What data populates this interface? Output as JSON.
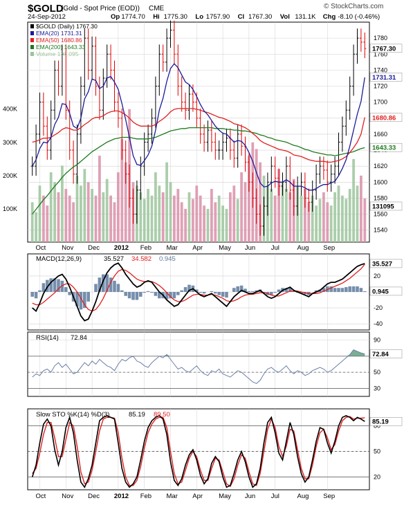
{
  "header": {
    "symbol": "$GOLD",
    "name": "(Gold - Spot Price (EOD))",
    "exchange": "CME",
    "watermark": "© StockCharts.com",
    "date": "24-Sep-2012",
    "ohlc": [
      {
        "label": "Op",
        "value": "1774.70"
      },
      {
        "label": "Hi",
        "value": "1775.30"
      },
      {
        "label": "Lo",
        "value": "1757.90"
      },
      {
        "label": "Cl",
        "value": "1767.30"
      },
      {
        "label": "Vol",
        "value": "131.1K"
      },
      {
        "label": "Chg",
        "value": "-8.10 (-0.46%)"
      }
    ]
  },
  "colors": {
    "background": "#ffffff",
    "panel_background": "#ffffff",
    "grid": "#d0d0d0",
    "up": "#000000",
    "down": "#e00000",
    "ema20": "#1a1a99",
    "ema50": "#e02020",
    "ema200": "#1d7a1d",
    "volume_up": "#9cc49c",
    "volume_down": "#d98fa8",
    "macd": "#000000",
    "signal": "#e02020",
    "histogram": "#5e7a9e",
    "rsi": "#6a7fa8",
    "rsi_fill": "#5a9a7a",
    "k": "#000000",
    "d": "#e02020"
  },
  "x_labels": [
    "Oct",
    "Nov",
    "Dec",
    "2012",
    "Feb",
    "Mar",
    "Apr",
    "May",
    "Jun",
    "Jul",
    "Aug",
    "Sep"
  ],
  "chart_data": [
    {
      "type": "candlestick",
      "title": "$GOLD (Daily) 1767.30",
      "legend": [
        {
          "name": "$GOLD (Daily) 1767.30",
          "color_key": "up"
        },
        {
          "name": "EMA(20) 1731.31",
          "color_key": "ema20"
        },
        {
          "name": "EMA(50) 1680.86",
          "color_key": "ema50"
        },
        {
          "name": "EMA(200) 1643.33",
          "color_key": "ema200"
        },
        {
          "name": "Volume 131,095",
          "color_key": "volume_up"
        }
      ],
      "ylim": [
        1525,
        1800
      ],
      "y_ticks": [
        1540,
        1560,
        1580,
        1600,
        1620,
        1640,
        1660,
        1680,
        1700,
        1720,
        1740,
        1760,
        1780
      ],
      "volume_ticks": [
        {
          "label": "100K",
          "value": 100000
        },
        {
          "label": "200K",
          "value": 200000
        },
        {
          "label": "300K",
          "value": 300000
        },
        {
          "label": "400K",
          "value": 400000
        }
      ],
      "volume_ylim": [
        0,
        620000
      ],
      "price_tags": [
        {
          "label": "1767.30",
          "value": 1767.3,
          "style": "close"
        },
        {
          "label": "1731.31",
          "value": 1731.31,
          "style": "ema20"
        },
        {
          "label": "1680.86",
          "value": 1680.86,
          "style": "ema50"
        },
        {
          "label": "1643.33",
          "value": 1643.33,
          "style": "ema200"
        },
        {
          "label": "131095",
          "value": 1570,
          "style": "volume"
        }
      ],
      "close_series": [
        1620,
        1660,
        1700,
        1670,
        1640,
        1690,
        1740,
        1720,
        1760,
        1690,
        1640,
        1610,
        1660,
        1720,
        1780,
        1740,
        1770,
        1720,
        1690,
        1730,
        1760,
        1740,
        1700,
        1680,
        1640,
        1610,
        1580,
        1560,
        1590,
        1620,
        1650,
        1660,
        1680,
        1720,
        1760,
        1750,
        1780,
        1790,
        1760,
        1720,
        1700,
        1690,
        1710,
        1700,
        1680,
        1660,
        1650,
        1665,
        1650,
        1640,
        1640,
        1650,
        1655,
        1640,
        1630,
        1660,
        1645,
        1625,
        1600,
        1580,
        1560,
        1545,
        1570,
        1600,
        1620,
        1605,
        1595,
        1600,
        1620,
        1590,
        1570,
        1595,
        1600,
        1580,
        1575,
        1590,
        1610,
        1620,
        1615,
        1600,
        1610,
        1620,
        1650,
        1670,
        1690,
        1720,
        1760,
        1780,
        1775,
        1767
      ],
      "ema20": [
        1620,
        1628,
        1642,
        1650,
        1649,
        1656,
        1672,
        1681,
        1698,
        1697,
        1686,
        1670,
        1667,
        1680,
        1704,
        1713,
        1729,
        1727,
        1717,
        1720,
        1730,
        1732,
        1725,
        1716,
        1698,
        1678,
        1656,
        1633,
        1622,
        1621,
        1627,
        1634,
        1645,
        1665,
        1690,
        1705,
        1726,
        1742,
        1748,
        1743,
        1734,
        1725,
        1722,
        1716,
        1707,
        1697,
        1689,
        1684,
        1677,
        1670,
        1665,
        1661,
        1660,
        1655,
        1650,
        1652,
        1651,
        1646,
        1637,
        1626,
        1612,
        1599,
        1594,
        1595,
        1599,
        1601,
        1600,
        1600,
        1603,
        1600,
        1595,
        1595,
        1595,
        1593,
        1590,
        1590,
        1592,
        1595,
        1597,
        1597,
        1599,
        1601,
        1608,
        1617,
        1628,
        1645,
        1665,
        1685,
        1701,
        1731
      ],
      "ema50": [
        1650,
        1651,
        1653,
        1655,
        1655,
        1656,
        1659,
        1662,
        1666,
        1668,
        1667,
        1665,
        1665,
        1668,
        1672,
        1675,
        1679,
        1681,
        1681,
        1683,
        1686,
        1688,
        1689,
        1689,
        1687,
        1684,
        1680,
        1675,
        1672,
        1670,
        1670,
        1670,
        1670,
        1672,
        1676,
        1679,
        1683,
        1688,
        1691,
        1692,
        1692,
        1692,
        1692,
        1692,
        1691,
        1690,
        1688,
        1687,
        1685,
        1683,
        1681,
        1680,
        1678,
        1676,
        1673,
        1672,
        1670,
        1668,
        1665,
        1661,
        1657,
        1652,
        1649,
        1647,
        1645,
        1643,
        1641,
        1640,
        1639,
        1637,
        1634,
        1633,
        1632,
        1630,
        1628,
        1627,
        1626,
        1626,
        1626,
        1625,
        1625,
        1626,
        1627,
        1629,
        1632,
        1637,
        1643,
        1650,
        1660,
        1681
      ],
      "ema200": [
        1560,
        1566,
        1572,
        1578,
        1583,
        1589,
        1595,
        1600,
        1606,
        1611,
        1615,
        1619,
        1622,
        1626,
        1630,
        1634,
        1638,
        1641,
        1644,
        1647,
        1650,
        1652,
        1654,
        1655,
        1656,
        1656,
        1656,
        1655,
        1654,
        1654,
        1654,
        1654,
        1655,
        1656,
        1658,
        1660,
        1662,
        1664,
        1665,
        1666,
        1667,
        1667,
        1668,
        1668,
        1668,
        1668,
        1668,
        1668,
        1668,
        1667,
        1667,
        1667,
        1666,
        1666,
        1665,
        1665,
        1664,
        1664,
        1663,
        1662,
        1661,
        1659,
        1658,
        1656,
        1655,
        1653,
        1652,
        1651,
        1650,
        1648,
        1646,
        1645,
        1643,
        1641,
        1640,
        1638,
        1637,
        1636,
        1635,
        1634,
        1634,
        1633,
        1634,
        1635,
        1636,
        1637,
        1638,
        1640,
        1642,
        1643
      ],
      "volume": [
        120000,
        90000,
        170000,
        140000,
        110000,
        210000,
        180000,
        150000,
        230000,
        160000,
        140000,
        120000,
        200000,
        170000,
        220000,
        180000,
        160000,
        140000,
        260000,
        150000,
        190000,
        140000,
        120000,
        210000,
        310000,
        240000,
        400000,
        180000,
        170000,
        150000,
        130000,
        160000,
        140000,
        210000,
        170000,
        150000,
        240000,
        180000,
        140000,
        160000,
        120000,
        100000,
        150000,
        130000,
        170000,
        140000,
        110000,
        100000,
        160000,
        120000,
        140000,
        110000,
        100000,
        150000,
        170000,
        130000,
        210000,
        180000,
        260000,
        300000,
        280000,
        240000,
        200000,
        170000,
        160000,
        140000,
        220000,
        180000,
        160000,
        150000,
        190000,
        170000,
        140000,
        160000,
        120000,
        140000,
        110000,
        130000,
        150000,
        120000,
        110000,
        150000,
        170000,
        140000,
        130000,
        160000,
        250000,
        170000,
        200000,
        131095
      ]
    },
    {
      "type": "line",
      "title": "MACD(12,26,9)",
      "legend": [
        {
          "name": "MACD(12,26,9)",
          "value": "35.527",
          "color_key": "macd"
        },
        {
          "name": "",
          "value": "34.582",
          "color_key": "signal"
        },
        {
          "name": "",
          "value": "0.945",
          "color_key": "histogram"
        }
      ],
      "ylim": [
        -45,
        45
      ],
      "y_ticks": [
        -40,
        -20,
        0,
        20
      ],
      "price_tags": [
        {
          "label": "35.527",
          "value": 35.527
        },
        {
          "label": "0.945",
          "value": 0.945
        }
      ],
      "macd": [
        -20,
        -24,
        -14,
        -2,
        6,
        12,
        16,
        20,
        22,
        16,
        6,
        -6,
        -18,
        -30,
        -36,
        -34,
        -24,
        -12,
        2,
        14,
        24,
        30,
        34,
        36,
        30,
        22,
        16,
        10,
        6,
        8,
        12,
        14,
        12,
        6,
        0,
        -4,
        -10,
        -14,
        -18,
        -16,
        -10,
        -4,
        2,
        4,
        0,
        -4,
        -6,
        -4,
        -2,
        -6,
        -10,
        -14,
        -18,
        -12,
        -6,
        -2,
        2,
        0,
        -2,
        -2,
        0,
        2,
        -2,
        -6,
        -8,
        -6,
        -2,
        2,
        4,
        6,
        2,
        0,
        -2,
        -4,
        -6,
        -2,
        0,
        2,
        6,
        10,
        12,
        12,
        14,
        16,
        20,
        24,
        28,
        32,
        34,
        35.5
      ],
      "signal": [
        -14,
        -16,
        -16,
        -13,
        -9,
        -5,
        -1,
        4,
        8,
        10,
        10,
        6,
        0,
        -8,
        -16,
        -22,
        -24,
        -22,
        -16,
        -8,
        2,
        12,
        20,
        26,
        28,
        27,
        24,
        20,
        16,
        14,
        13,
        13,
        13,
        11,
        8,
        4,
        -1,
        -6,
        -10,
        -12,
        -12,
        -10,
        -7,
        -4,
        -3,
        -3,
        -4,
        -4,
        -3,
        -4,
        -6,
        -8,
        -11,
        -12,
        -11,
        -9,
        -6,
        -4,
        -3,
        -3,
        -2,
        -1,
        -1,
        -2,
        -4,
        -5,
        -5,
        -3,
        -1,
        1,
        1,
        1,
        0,
        -1,
        -2,
        -2,
        -2,
        -1,
        1,
        3,
        5,
        7,
        9,
        11,
        14,
        17,
        21,
        25,
        29,
        34.6
      ]
    },
    {
      "type": "line",
      "title": "RSI(14)",
      "legend": [
        {
          "name": "RSI(14)",
          "value": "72.84",
          "color_key": "rsi"
        }
      ],
      "ylim": [
        20,
        100
      ],
      "y_ticks": [
        30,
        50,
        70,
        90
      ],
      "ref_lines": [
        30,
        50,
        70
      ],
      "price_tags": [
        {
          "label": "72.84",
          "value": 72.84
        }
      ],
      "values": [
        44,
        48,
        46,
        52,
        54,
        50,
        58,
        62,
        56,
        60,
        54,
        48,
        50,
        56,
        62,
        58,
        64,
        60,
        66,
        62,
        58,
        56,
        52,
        60,
        66,
        64,
        68,
        70,
        64,
        62,
        58,
        56,
        62,
        66,
        70,
        68,
        72,
        66,
        60,
        54,
        56,
        52,
        50,
        54,
        58,
        52,
        48,
        46,
        52,
        50,
        54,
        48,
        46,
        44,
        48,
        52,
        50,
        46,
        42,
        38,
        36,
        40,
        48,
        54,
        56,
        52,
        50,
        54,
        58,
        52,
        48,
        52,
        50,
        46,
        48,
        52,
        54,
        56,
        54,
        50,
        52,
        56,
        60,
        64,
        68,
        72,
        78,
        76,
        74,
        72.84
      ]
    },
    {
      "type": "line",
      "title": "Slow STO %K(14) %D(3)",
      "legend": [
        {
          "name": "Slow STO %K(14) %D(3)",
          "value": "85.19",
          "color_key": "k"
        },
        {
          "name": "",
          "value": "89.50",
          "color_key": "d"
        }
      ],
      "ylim": [
        5,
        100
      ],
      "y_ticks": [
        20,
        50,
        80
      ],
      "ref_lines": [
        20,
        50,
        80
      ],
      "price_tags": [
        {
          "label": "85.19",
          "value": 85.19
        }
      ],
      "k": [
        20,
        34,
        60,
        82,
        88,
        80,
        52,
        34,
        50,
        78,
        90,
        72,
        40,
        14,
        8,
        18,
        34,
        60,
        86,
        90,
        92,
        90,
        88,
        60,
        30,
        14,
        8,
        12,
        20,
        40,
        62,
        78,
        86,
        90,
        92,
        88,
        70,
        38,
        16,
        10,
        18,
        34,
        46,
        52,
        40,
        22,
        12,
        18,
        36,
        44,
        38,
        20,
        8,
        10,
        24,
        40,
        50,
        38,
        20,
        8,
        12,
        30,
        60,
        84,
        90,
        72,
        48,
        40,
        62,
        84,
        70,
        44,
        24,
        14,
        20,
        40,
        62,
        78,
        76,
        60,
        48,
        62,
        80,
        90,
        92,
        90,
        86,
        90,
        88,
        85.19
      ],
      "d": [
        24,
        30,
        48,
        70,
        84,
        84,
        66,
        44,
        44,
        64,
        84,
        80,
        56,
        26,
        12,
        14,
        28,
        50,
        74,
        88,
        90,
        90,
        89,
        72,
        42,
        20,
        10,
        10,
        16,
        32,
        54,
        72,
        82,
        88,
        90,
        90,
        78,
        50,
        24,
        12,
        14,
        28,
        42,
        50,
        44,
        28,
        16,
        16,
        30,
        42,
        40,
        26,
        12,
        9,
        18,
        34,
        46,
        42,
        26,
        12,
        10,
        24,
        50,
        76,
        88,
        78,
        56,
        44,
        56,
        76,
        74,
        52,
        30,
        18,
        18,
        34,
        56,
        72,
        76,
        66,
        52,
        58,
        74,
        86,
        90,
        91,
        88,
        89,
        89,
        89.5
      ]
    }
  ]
}
